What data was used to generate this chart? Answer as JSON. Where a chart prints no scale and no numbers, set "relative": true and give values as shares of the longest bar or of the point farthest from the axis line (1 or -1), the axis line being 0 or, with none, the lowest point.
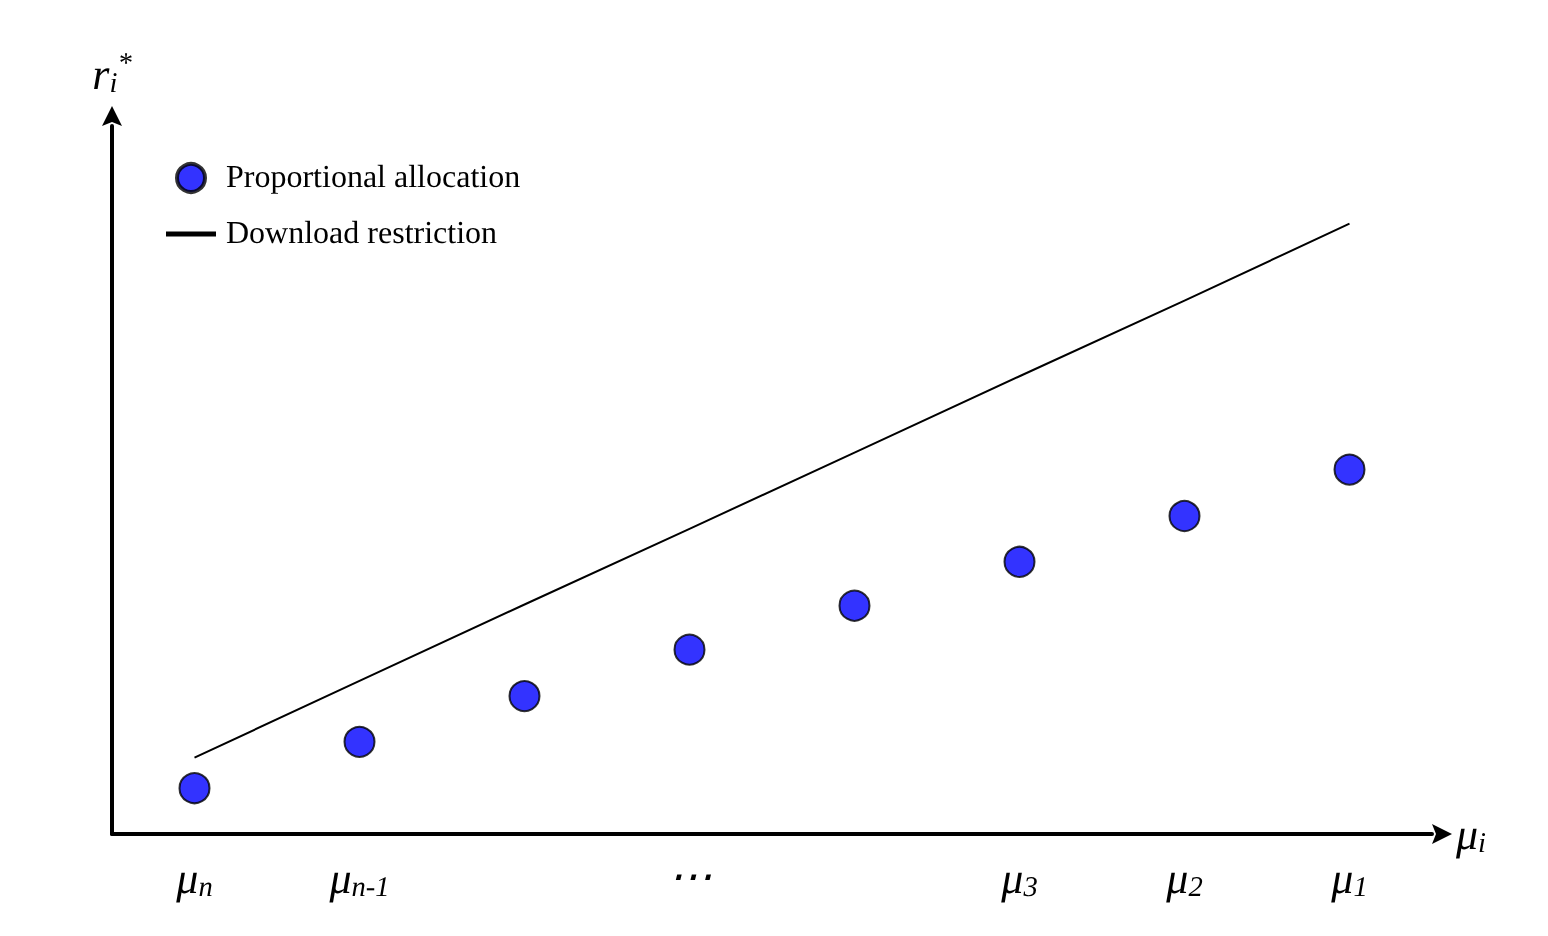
{
  "chart_data": {
    "type": "scatter",
    "relative": true,
    "xlabel": "μ$_{i}$",
    "ylabel": "r$_{i}$$^{*}$",
    "categories": [
      "μ$_{n}$",
      "μ$_{n-1}$",
      null,
      "⋯",
      null,
      "μ$_{3}$",
      "μ$_{2}$",
      "μ$_{1}$"
    ],
    "series": [
      {
        "name": "Proportional allocation",
        "type": "scatter",
        "color": "#0000ff",
        "marker": "circle",
        "values": [
          0.075,
          0.151,
          0.226,
          0.302,
          0.374,
          0.446,
          0.521,
          0.597
        ]
      },
      {
        "name": "Download restriction",
        "type": "line",
        "color": "#000000",
        "line_style": "solid",
        "marker": "none",
        "values": [
          0.125,
          0.251,
          0.376,
          0.5,
          0.625,
          0.75,
          0.874,
          1.0
        ]
      }
    ],
    "legend": "top left",
    "grid": false
  }
}
